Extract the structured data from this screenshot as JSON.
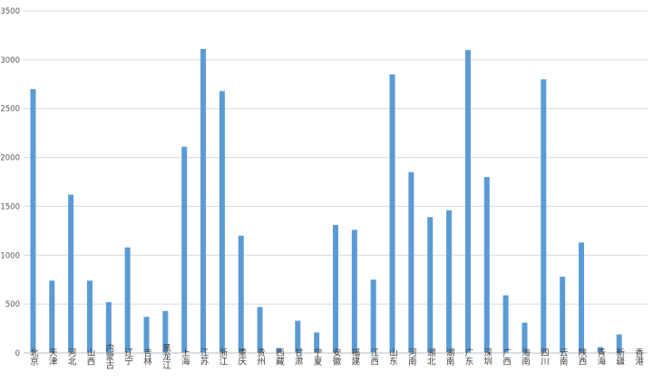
{
  "chart_data": {
    "type": "bar",
    "title": "",
    "xlabel": "",
    "ylabel": "",
    "ylim": [
      0,
      3500
    ],
    "yticks": [
      0,
      500,
      1000,
      1500,
      2000,
      2500,
      3000,
      3500
    ],
    "grid": true,
    "legend": "none",
    "color": "#5B9BD5",
    "categories": [
      "北京",
      "天津",
      "河北",
      "山西",
      "内蒙古",
      "辽宁",
      "吉林",
      "黑龙江",
      "上海",
      "江苏",
      "浙江",
      "重庆",
      "贵州",
      "西藏",
      "甘肃",
      "宁夏",
      "安徽",
      "福建",
      "江西",
      "山东",
      "河南",
      "湖北",
      "湖南",
      "广东",
      "深圳",
      "广西",
      "海南",
      "四川",
      "云南",
      "陕西",
      "青海",
      "新疆",
      "香港"
    ],
    "values": [
      2700,
      740,
      1620,
      740,
      520,
      1080,
      370,
      430,
      2110,
      3110,
      2680,
      1200,
      470,
      50,
      330,
      210,
      1310,
      1260,
      750,
      2850,
      1850,
      1390,
      1460,
      3100,
      1800,
      590,
      310,
      2800,
      780,
      1130,
      60,
      190,
      0
    ]
  }
}
